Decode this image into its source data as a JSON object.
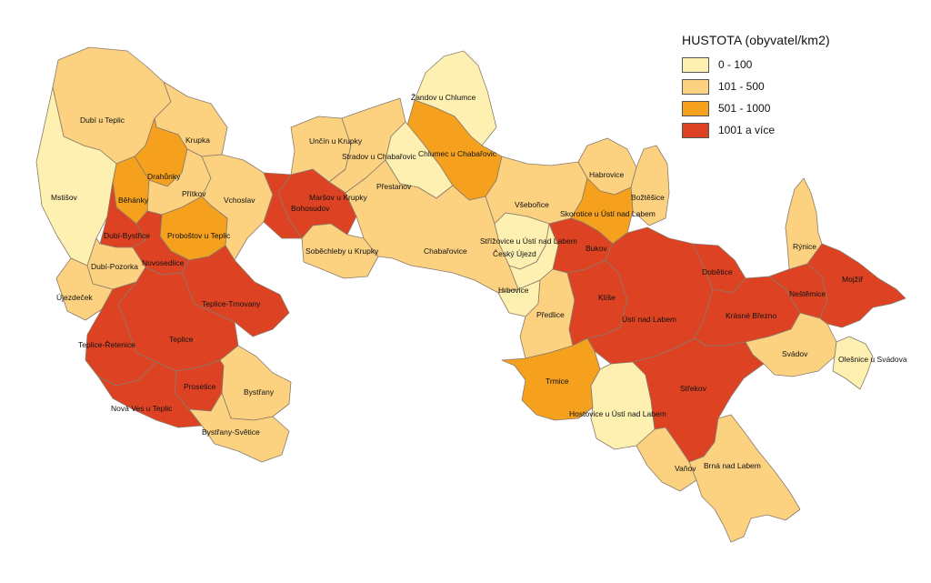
{
  "colors": {
    "c0": "#fdf0b0",
    "c1": "#fcd281",
    "c2": "#f5a11e",
    "c3": "#dd4322",
    "border": "#8a7a6a"
  },
  "legend": {
    "title": "HUSTOTA (obyvatel/km2)",
    "items": [
      {
        "label": "0 - 100",
        "cls": "c0"
      },
      {
        "label": "101 - 500",
        "cls": "c1"
      },
      {
        "label": "501 - 1000",
        "cls": "c2"
      },
      {
        "label": "1001 a více",
        "cls": "c3"
      }
    ]
  },
  "regions": [
    {
      "name": "Dubí u Teplic",
      "cls": "c1"
    },
    {
      "name": "Krupka",
      "cls": "c1"
    },
    {
      "name": "Drahůnky",
      "cls": "c2"
    },
    {
      "name": "Běhánky",
      "cls": "c2"
    },
    {
      "name": "Přítkov",
      "cls": "c1"
    },
    {
      "name": "Vchoslav",
      "cls": "c1"
    },
    {
      "name": "Maršov u Krupky",
      "cls": "c3"
    },
    {
      "name": "Bohosudov",
      "cls": "c3"
    },
    {
      "name": "Soběchleby u Krupky",
      "cls": "c1"
    },
    {
      "name": "Mstišov",
      "cls": "c0"
    },
    {
      "name": "Dubí-Bystřice",
      "cls": "c3"
    },
    {
      "name": "Proboštov u Teplic",
      "cls": "c2"
    },
    {
      "name": "Novosedlice",
      "cls": "c3"
    },
    {
      "name": "Dubí-Pozorka",
      "cls": "c1"
    },
    {
      "name": "Újezdeček",
      "cls": "c1"
    },
    {
      "name": "Teplice-Trnovany",
      "cls": "c3"
    },
    {
      "name": "Teplice",
      "cls": "c3"
    },
    {
      "name": "Teplice-Řetenice",
      "cls": "c3"
    },
    {
      "name": "Prosetice",
      "cls": "c3"
    },
    {
      "name": "Nová Ves u Teplic",
      "cls": "c3"
    },
    {
      "name": "Bystřany",
      "cls": "c1"
    },
    {
      "name": "Bystřany-Světice",
      "cls": "c1"
    },
    {
      "name": "Unčín u Krupky",
      "cls": "c1"
    },
    {
      "name": "Stradov u Chabařovic",
      "cls": "c1"
    },
    {
      "name": "Žandov u Chlumce",
      "cls": "c0"
    },
    {
      "name": "Chlumec u Chabařovic",
      "cls": "c2"
    },
    {
      "name": "Přestanov",
      "cls": "c0"
    },
    {
      "name": "Chabařovice",
      "cls": "c1"
    },
    {
      "name": "Všebořice",
      "cls": "c1"
    },
    {
      "name": "Habrovice",
      "cls": "c1"
    },
    {
      "name": "Božtěšice",
      "cls": "c1"
    },
    {
      "name": "Skorotice u Ústí nad Labem",
      "cls": "c2"
    },
    {
      "name": "Střížovice u Ústí nad Labem",
      "cls": "c0"
    },
    {
      "name": "Český Újezd",
      "cls": "c0"
    },
    {
      "name": "Bukov",
      "cls": "c3"
    },
    {
      "name": "Hrbovice",
      "cls": "c0"
    },
    {
      "name": "Předlice",
      "cls": "c1"
    },
    {
      "name": "Klíše",
      "cls": "c3"
    },
    {
      "name": "Ústí nad Labem",
      "cls": "c3"
    },
    {
      "name": "Dobětice",
      "cls": "c3"
    },
    {
      "name": "Krásné Březno",
      "cls": "c3"
    },
    {
      "name": "Neštěmice",
      "cls": "c3"
    },
    {
      "name": "Mojžíř",
      "cls": "c3"
    },
    {
      "name": "Rýnice",
      "cls": "c1"
    },
    {
      "name": "Svádov",
      "cls": "c1"
    },
    {
      "name": "Olešnice u Svádova",
      "cls": "c0"
    },
    {
      "name": "Trmice",
      "cls": "c2"
    },
    {
      "name": "Hostovice u Ústí nad Labem",
      "cls": "c0"
    },
    {
      "name": "Střekov",
      "cls": "c3"
    },
    {
      "name": "Vaňov",
      "cls": "c1"
    },
    {
      "name": "Brná nad Labem",
      "cls": "c1"
    }
  ]
}
